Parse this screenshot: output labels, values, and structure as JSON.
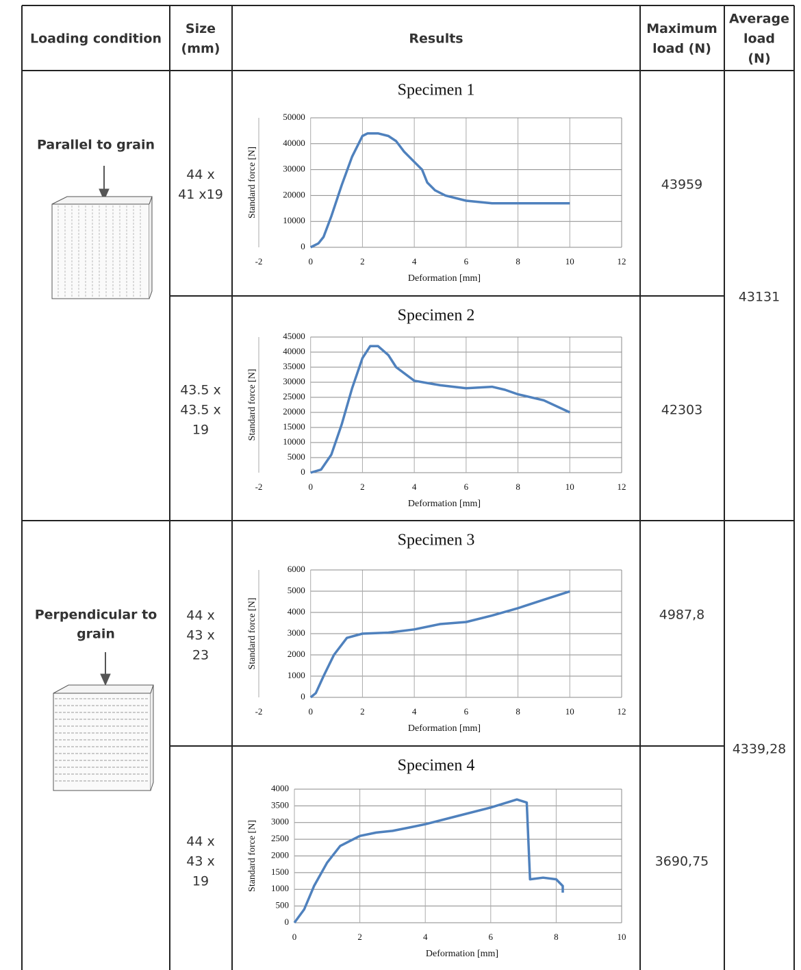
{
  "table": {
    "headers": [
      [
        "Loading condition"
      ],
      [
        "Size",
        "(mm)"
      ],
      [
        "Results"
      ],
      [
        "Maximum",
        "load (N)"
      ],
      [
        "Average",
        "load",
        "(N)"
      ]
    ],
    "groups": [
      {
        "loading_condition": [
          "Parallel to grain"
        ],
        "average_load": "43131"
      },
      {
        "loading_condition": [
          "Perpendicular to",
          "grain"
        ],
        "average_load": "4339,28"
      }
    ],
    "rows": [
      {
        "size": [
          "44 x",
          "41 x19"
        ],
        "max_load": "43959"
      },
      {
        "size": [
          "43.5 x",
          "43.5 x",
          "19"
        ],
        "max_load": "42303"
      },
      {
        "size": [
          "44 x",
          "43 x",
          "23"
        ],
        "max_load": "4987,8"
      },
      {
        "size": [
          "44 x",
          "43 x",
          "19"
        ],
        "max_load": "3690,75"
      }
    ]
  },
  "chart_data": [
    {
      "type": "line",
      "title": "Specimen 1",
      "x_label": "Deformation [mm]",
      "y_label": "Standard force [N]",
      "color": "#4f81bd",
      "grid": true,
      "x": [
        0,
        0.3,
        0.5,
        0.8,
        1.2,
        1.6,
        2,
        2.2,
        2.6,
        3,
        3.3,
        3.6,
        4,
        4.3,
        4.5,
        4.8,
        5.2,
        6,
        7,
        8,
        9,
        10
      ],
      "values": [
        0,
        1500,
        4000,
        12000,
        24000,
        35000,
        43000,
        44000,
        44000,
        43000,
        41000,
        37000,
        33000,
        30000,
        25000,
        22000,
        20000,
        18000,
        17000,
        17000,
        17000,
        17000
      ],
      "xlim": [
        -2,
        12
      ],
      "xticks": [
        -2,
        0,
        2,
        4,
        6,
        8,
        10,
        12
      ],
      "ylim": [
        0,
        50000
      ],
      "yticks": [
        0,
        10000,
        20000,
        30000,
        40000,
        50000
      ]
    },
    {
      "type": "line",
      "title": "Specimen 2",
      "x_label": "Deformation [mm]",
      "y_label": "Standard force [N]",
      "color": "#4f81bd",
      "grid": true,
      "x": [
        0,
        0.4,
        0.8,
        1.2,
        1.6,
        2,
        2.3,
        2.6,
        3,
        3.3,
        4,
        5,
        6,
        7,
        7.5,
        8,
        9,
        10
      ],
      "values": [
        0,
        1000,
        6000,
        16000,
        28000,
        38000,
        42000,
        42000,
        39000,
        35000,
        30500,
        29000,
        28000,
        28500,
        27500,
        26000,
        24000,
        20000
      ],
      "xlim": [
        -2,
        12
      ],
      "xticks": [
        -2,
        0,
        2,
        4,
        6,
        8,
        10,
        12
      ],
      "ylim": [
        0,
        45000
      ],
      "yticks": [
        0,
        5000,
        10000,
        15000,
        20000,
        25000,
        30000,
        35000,
        40000,
        45000
      ]
    },
    {
      "type": "line",
      "title": "Specimen 3",
      "x_label": "Deformation [mm]",
      "y_label": "Standard force [N]",
      "color": "#4f81bd",
      "grid": true,
      "x": [
        0,
        0.2,
        0.5,
        0.9,
        1.4,
        2,
        3,
        4,
        5,
        6,
        7,
        8,
        9,
        10
      ],
      "values": [
        0,
        200,
        1000,
        2000,
        2800,
        3000,
        3050,
        3200,
        3450,
        3550,
        3850,
        4200,
        4600,
        4990
      ],
      "xlim": [
        -2,
        12
      ],
      "xticks": [
        -2,
        0,
        2,
        4,
        6,
        8,
        10,
        12
      ],
      "ylim": [
        0,
        6000
      ],
      "yticks": [
        0,
        1000,
        2000,
        3000,
        4000,
        5000,
        6000
      ]
    },
    {
      "type": "line",
      "title": "Specimen 4",
      "x_label": "Deformation [mm]",
      "y_label": "Standard force [N]",
      "color": "#4f81bd",
      "grid": true,
      "x": [
        0,
        0.3,
        0.6,
        1,
        1.4,
        2,
        2.5,
        3,
        3.5,
        4,
        5,
        6,
        6.8,
        7.1,
        7.2,
        7.6,
        8,
        8.2,
        8.2
      ],
      "values": [
        0,
        400,
        1100,
        1800,
        2300,
        2600,
        2700,
        2750,
        2850,
        2950,
        3200,
        3450,
        3690,
        3600,
        1300,
        1350,
        1300,
        1100,
        900
      ],
      "xlim": [
        0,
        10
      ],
      "xticks": [
        0,
        2,
        4,
        6,
        8,
        10
      ],
      "ylim": [
        0,
        4000
      ],
      "yticks": [
        0,
        500,
        1000,
        1500,
        2000,
        2500,
        3000,
        3500,
        4000
      ]
    }
  ]
}
